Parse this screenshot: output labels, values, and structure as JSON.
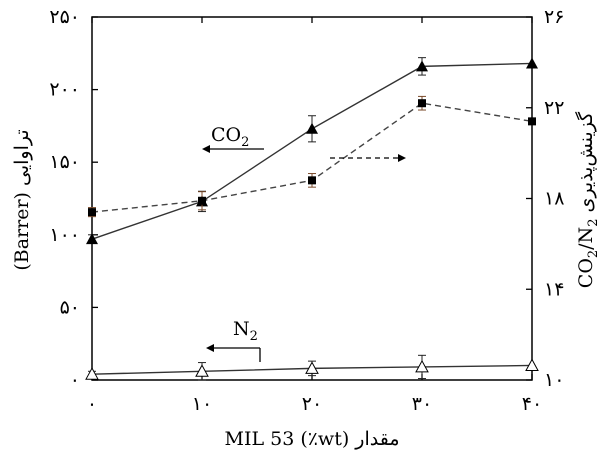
{
  "chart_data": {
    "type": "line",
    "x": [
      0,
      10,
      20,
      30,
      40
    ],
    "xticks": [
      "۰",
      "۱۰",
      "۲۰",
      "۳۰",
      "۴۰"
    ],
    "xlabel": "مقدار MIL 53 (٪wt)",
    "xlim": [
      0,
      40
    ],
    "ylabel_left": "تراوایی (Barrer)",
    "ylim_left": [
      0,
      250
    ],
    "yticks_left": [
      {
        "v": 0,
        "label": "۰"
      },
      {
        "v": 50,
        "label": "۵۰"
      },
      {
        "v": 100,
        "label": "۱۰۰"
      },
      {
        "v": 150,
        "label": "۱۵۰"
      },
      {
        "v": 200,
        "label": "۲۰۰"
      },
      {
        "v": 250,
        "label": "۲۵۰"
      }
    ],
    "ylabel_right_prefix": "گزینش‌پذیری",
    "ylabel_right_formula": "CO2/N2",
    "ylim_right": [
      10,
      26
    ],
    "yticks_right": [
      {
        "v": 10,
        "label": "۱۰"
      },
      {
        "v": 14,
        "label": "۱۴"
      },
      {
        "v": 18,
        "label": "۱۸"
      },
      {
        "v": 22,
        "label": "۲۲"
      },
      {
        "v": 26,
        "label": "۲۶"
      }
    ],
    "series": [
      {
        "name": "CO2",
        "axis": "left",
        "marker": "filled-triangle",
        "style": "solid",
        "values": [
          97,
          123,
          173,
          216,
          218
        ],
        "errors": [
          3,
          7,
          9,
          6,
          0
        ]
      },
      {
        "name": "N2",
        "axis": "left",
        "marker": "open-triangle",
        "style": "solid",
        "values": [
          4,
          6,
          8,
          9,
          10
        ],
        "errors": [
          2,
          6,
          5,
          8,
          0
        ]
      },
      {
        "name": "",
        "axis": "right",
        "marker": "filled-square",
        "style": "dashed",
        "values": [
          17.4,
          17.9,
          18.8,
          22.2,
          21.4
        ],
        "errors": [
          0.2,
          0.4,
          0.3,
          0.3,
          0
        ]
      }
    ],
    "annotations": [
      {
        "text": "CO2",
        "arrow": "left"
      },
      {
        "text": "N2",
        "arrow": "left"
      },
      {
        "text": "",
        "arrow": "right"
      }
    ],
    "grid": false
  }
}
